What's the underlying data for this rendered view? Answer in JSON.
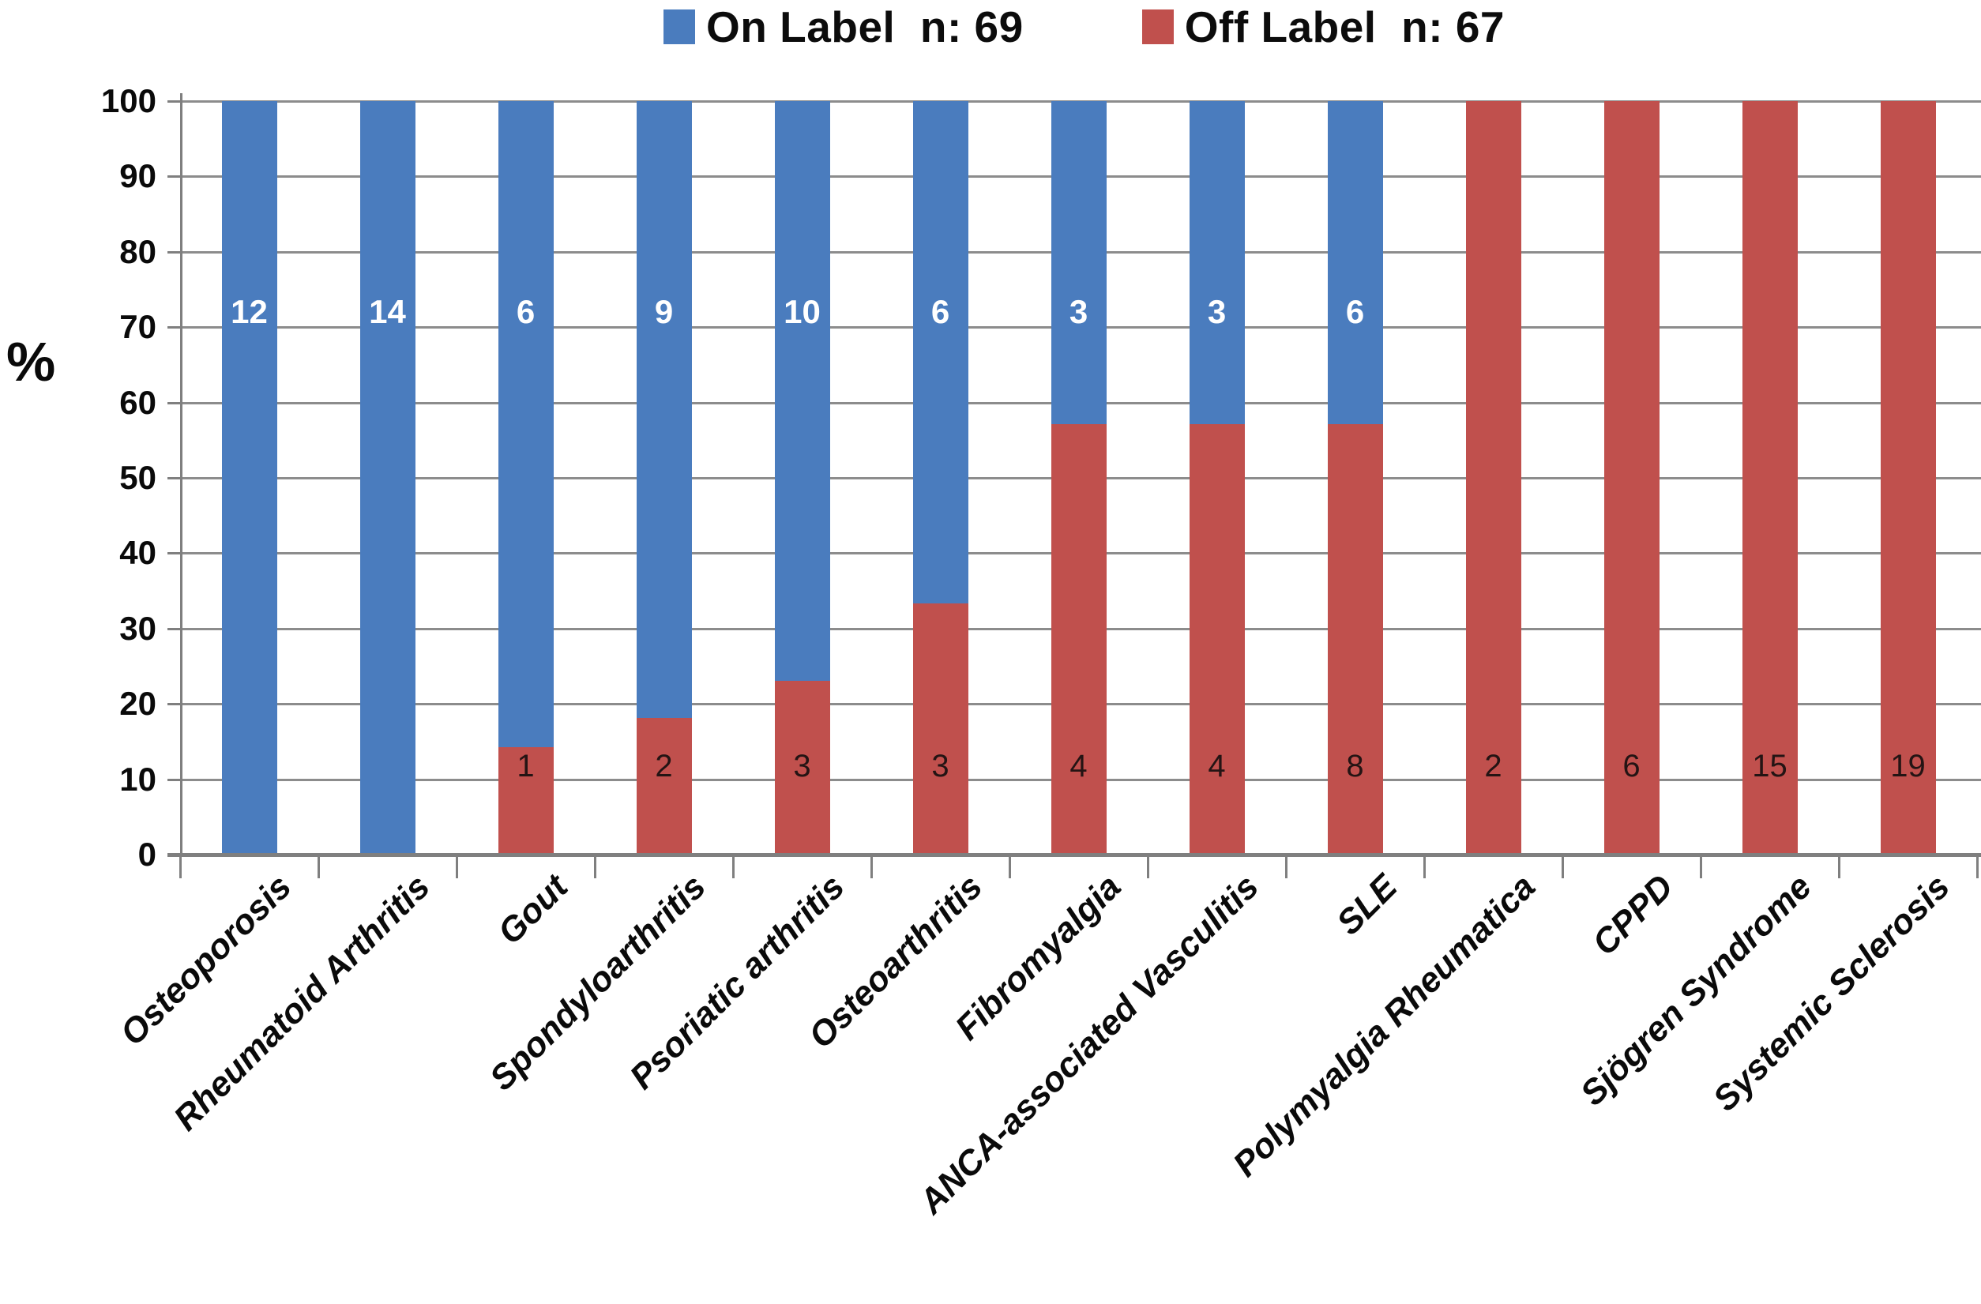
{
  "legend": {
    "items": [
      {
        "id": "on-label",
        "label": "On Label  n: 69",
        "color": "#4A7CBE"
      },
      {
        "id": "off-label",
        "label": "Off Label  n: 67",
        "color": "#C0504D"
      }
    ]
  },
  "y_axis": {
    "title": "%",
    "ticks": [
      0,
      10,
      20,
      30,
      40,
      50,
      60,
      70,
      80,
      90,
      100
    ]
  },
  "chart_data": {
    "type": "bar",
    "stacked": true,
    "normalized_to": 100,
    "title": "",
    "xlabel": "",
    "ylabel": "%",
    "ylim": [
      0,
      100
    ],
    "grid": true,
    "legend_position": "top-center",
    "categories": [
      "Osteoporosis",
      "Rheumatoid Arthritis",
      "Gout",
      "Spondyloarthritis",
      "Psoriatic arthritis",
      "Osteoarthritis",
      "Fibromyalgia",
      "ANCA-associated Vasculitis",
      "SLE",
      "Polymyalgia Rheumatica",
      "CPPD",
      "Sjögren Syndrome",
      "Systemic Sclerosis"
    ],
    "series": [
      {
        "name": "On Label",
        "n_total": 69,
        "color": "#4A7CBE",
        "counts": [
          12,
          14,
          6,
          9,
          10,
          6,
          3,
          3,
          6,
          0,
          0,
          0,
          0
        ]
      },
      {
        "name": "Off Label",
        "n_total": 67,
        "color": "#C0504D",
        "counts": [
          0,
          0,
          1,
          2,
          3,
          3,
          4,
          4,
          8,
          2,
          6,
          15,
          19
        ]
      }
    ],
    "percent_off_label_per_category": [
      0,
      0,
      14.3,
      18.2,
      23.1,
      33.3,
      57.1,
      57.1,
      57.1,
      100,
      100,
      100,
      100
    ],
    "percent_on_label_per_category": [
      100,
      100,
      85.7,
      81.8,
      76.9,
      66.7,
      42.9,
      42.9,
      42.9,
      0,
      0,
      0,
      0
    ]
  }
}
